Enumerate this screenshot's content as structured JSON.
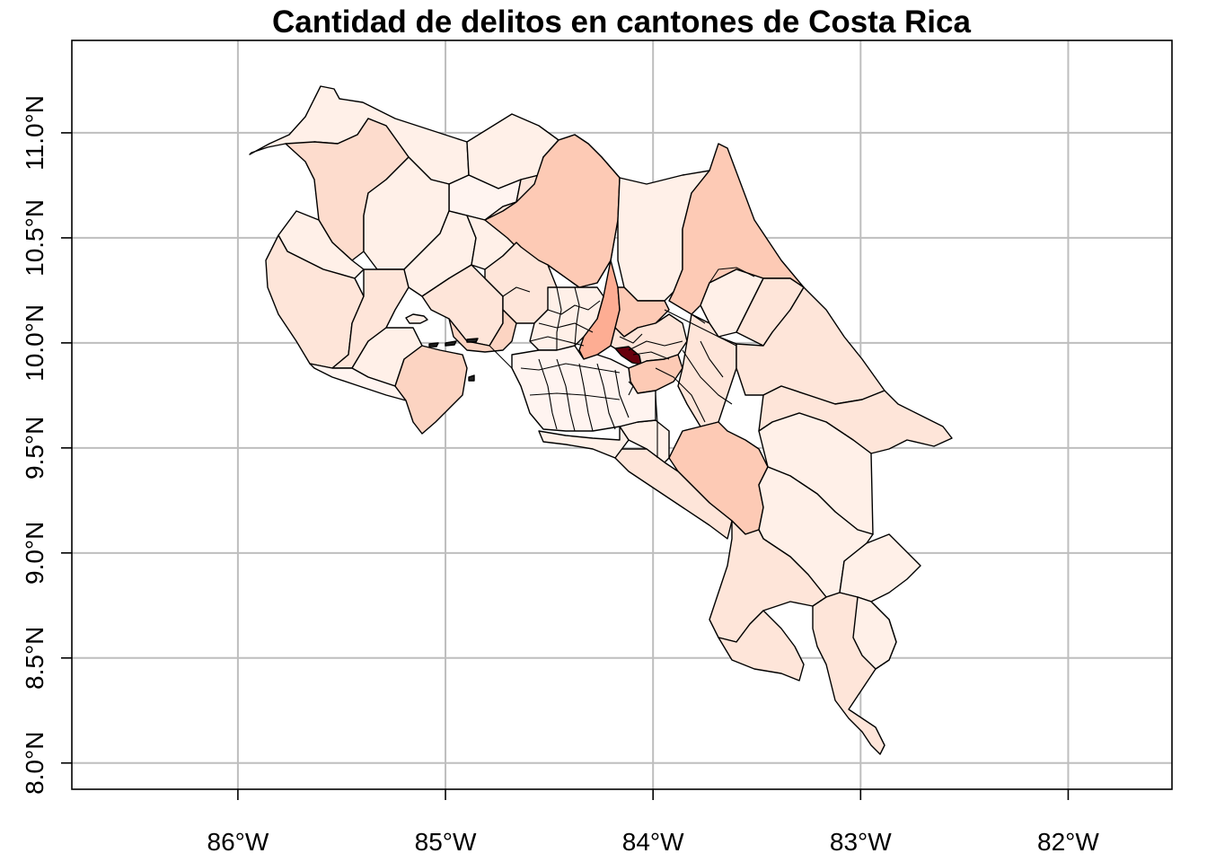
{
  "title": "Cantidad de delitos en cantones de Costa Rica",
  "colors": {
    "grid": "#bebebe",
    "outline": "#000000",
    "scale_low": "#fff5f0",
    "scale_mid": "#fcbba1",
    "scale_high": "#fb6a4a",
    "scale_max": "#67000d"
  },
  "x_axis": {
    "ticks": [
      {
        "lon": -86,
        "label": "86°W"
      },
      {
        "lon": -85,
        "label": "85°W"
      },
      {
        "lon": -84,
        "label": "84°W"
      },
      {
        "lon": -83,
        "label": "83°W"
      },
      {
        "lon": -82,
        "label": "82°W"
      }
    ]
  },
  "y_axis": {
    "ticks": [
      {
        "lat": 8.0,
        "label": "8.0°N"
      },
      {
        "lat": 8.5,
        "label": "8.5°N"
      },
      {
        "lat": 9.0,
        "label": "9.0°N"
      },
      {
        "lat": 9.5,
        "label": "9.5°N"
      },
      {
        "lat": 10.0,
        "label": "10.0°N"
      },
      {
        "lat": 10.5,
        "label": "10.5°N"
      },
      {
        "lat": 11.0,
        "label": "11.0°N"
      }
    ]
  },
  "map": {
    "extent": {
      "lon_min": -86.8,
      "lon_max": -81.5,
      "lat_min": 7.875,
      "lat_max": 11.44
    },
    "grid": true,
    "legend": "none"
  }
}
